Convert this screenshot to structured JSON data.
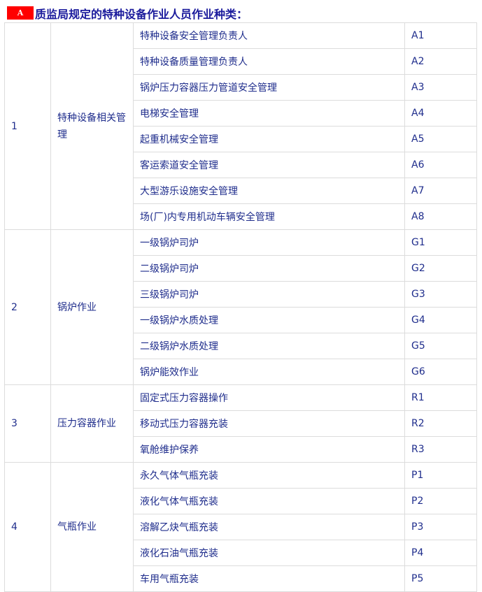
{
  "title": {
    "badge": "A",
    "text": "质监局规定的特种设备作业人员作业种类："
  },
  "groups": [
    {
      "no": "1",
      "name": "特种设备相关管理",
      "items": [
        [
          "特种设备安全管理负责人",
          "A1"
        ],
        [
          "特种设备质量管理负责人",
          "A2"
        ],
        [
          "锅炉压力容器压力管道安全管理",
          "A3"
        ],
        [
          "电梯安全管理",
          "A4"
        ],
        [
          "起重机械安全管理",
          "A5"
        ],
        [
          "客运索道安全管理",
          "A6"
        ],
        [
          "大型游乐设施安全管理",
          "A7"
        ],
        [
          "场(厂)内专用机动车辆安全管理",
          "A8"
        ]
      ]
    },
    {
      "no": "2",
      "name": "锅炉作业",
      "items": [
        [
          "一级锅炉司炉",
          "G1"
        ],
        [
          "二级锅炉司炉",
          "G2"
        ],
        [
          "三级锅炉司炉",
          "G3"
        ],
        [
          "一级锅炉水质处理",
          "G4"
        ],
        [
          "二级锅炉水质处理",
          "G5"
        ],
        [
          "锅炉能效作业",
          "G6"
        ]
      ]
    },
    {
      "no": "3",
      "name": "压力容器作业",
      "items": [
        [
          "固定式压力容器操作",
          "R1"
        ],
        [
          "移动式压力容器充装",
          "R2"
        ],
        [
          "氧舱维护保养",
          "R3"
        ]
      ]
    },
    {
      "no": "4",
      "name": "气瓶作业",
      "items": [
        [
          "永久气体气瓶充装",
          "P1"
        ],
        [
          "液化气体气瓶充装",
          "P2"
        ],
        [
          "溶解乙炔气瓶充装",
          "P3"
        ],
        [
          "液化石油气瓶充装",
          "P4"
        ],
        [
          "车用气瓶充装",
          "P5"
        ]
      ]
    }
  ],
  "colors": {
    "text": "#1f2d8c",
    "title": "#1a1a9c",
    "badge": "#ff0000",
    "border": "#dcdcdc"
  }
}
